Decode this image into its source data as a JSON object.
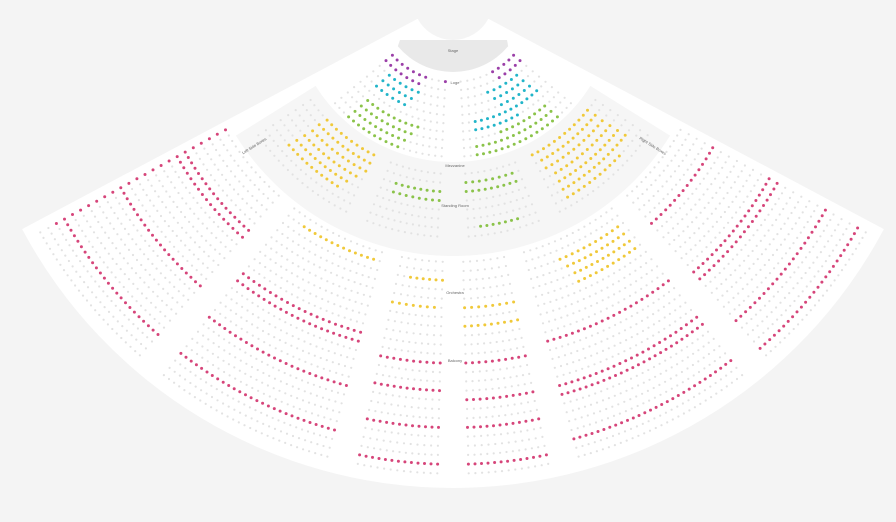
{
  "categories": {
    "purple": "#9b3fa8",
    "cyan": "#22b5c9",
    "green": "#8bc34a",
    "yellow": "#f0c93a",
    "pink": "#d6457a",
    "unavailable": "#e2e2e2"
  },
  "labels": {
    "stage": "Stage",
    "upper": "Loge",
    "mezzanine": "Mezzanine",
    "standing": "Standing Room",
    "orchestra": "Orchestra",
    "rear": "Balcony",
    "left_box": "Left Side Boxes",
    "right_box": "Right Side Boxes"
  },
  "highlights": [
    {
      "wedge": "UL",
      "rows": [
        0,
        1
      ],
      "seats": [
        0,
        6
      ],
      "category": "purple"
    },
    {
      "wedge": "UL",
      "rows": [
        0,
        0
      ],
      "seats": [
        9,
        12
      ],
      "category": "purple"
    },
    {
      "wedge": "UR",
      "rows": [
        0,
        1
      ],
      "seats": [
        -5,
        -1
      ],
      "category": "purple"
    },
    {
      "wedge": "UL",
      "rows": [
        2,
        4
      ],
      "seats": [
        2,
        7
      ],
      "category": "cyan"
    },
    {
      "wedge": "UR",
      "rows": [
        2,
        5
      ],
      "seats": [
        -8,
        -3
      ],
      "category": "cyan"
    },
    {
      "wedge": "UR",
      "rows": [
        5,
        6
      ],
      "seats": [
        2,
        9
      ],
      "category": "cyan"
    },
    {
      "wedge": "UL",
      "rows": [
        6,
        9
      ],
      "seats": [
        3,
        12
      ],
      "category": "green"
    },
    {
      "wedge": "UR",
      "rows": [
        8,
        9
      ],
      "seats": [
        2,
        14
      ],
      "category": "green"
    },
    {
      "wedge": "UR",
      "rows": [
        7,
        9
      ],
      "seats": [
        -12,
        -4
      ],
      "category": "green"
    },
    {
      "wedge": "MCL",
      "rows": [
        2,
        3
      ],
      "seats": [
        2,
        9
      ],
      "category": "green"
    },
    {
      "wedge": "MCR",
      "rows": [
        1,
        2
      ],
      "seats": [
        -10,
        -2
      ],
      "category": "green"
    },
    {
      "wedge": "MCR",
      "rows": [
        6,
        6
      ],
      "seats": [
        2,
        8
      ],
      "category": "green"
    },
    {
      "wedge": "ML",
      "rows": [
        0,
        5
      ],
      "seats": [
        4,
        14
      ],
      "category": "yellow"
    },
    {
      "wedge": "ML",
      "rows": [
        1,
        3
      ],
      "seats": [
        -10,
        -2
      ],
      "category": "yellow"
    },
    {
      "wedge": "MR",
      "rows": [
        0,
        5
      ],
      "seats": [
        -14,
        -3
      ],
      "category": "yellow"
    },
    {
      "wedge": "MR",
      "rows": [
        3,
        6
      ],
      "seats": [
        2,
        12
      ],
      "category": "yellow"
    },
    {
      "wedge": "LM",
      "rows": [
        1,
        1
      ],
      "seats": [
        3,
        15
      ],
      "category": "yellow"
    },
    {
      "wedge": "LC",
      "rows": [
        5,
        5
      ],
      "seats": [
        0,
        6
      ],
      "category": "yellow"
    },
    {
      "wedge": "LC",
      "rows": [
        2,
        2
      ],
      "seats": [
        -6,
        -1
      ],
      "category": "yellow"
    },
    {
      "wedge": "RC",
      "rows": [
        5,
        5
      ],
      "seats": [
        0,
        14
      ],
      "category": "yellow"
    },
    {
      "wedge": "RC",
      "rows": [
        7,
        7
      ],
      "seats": [
        0,
        12
      ],
      "category": "yellow"
    },
    {
      "wedge": "RM",
      "rows": [
        2,
        5
      ],
      "seats": [
        -12,
        -2
      ],
      "category": "yellow"
    },
    {
      "wedge": "LL",
      "rows": [
        0,
        21
      ],
      "seats": [
        0,
        0
      ],
      "category": "pink",
      "every": 1
    },
    {
      "wedge": "LL",
      "rows": [
        5,
        6
      ],
      "seats": [
        0,
        40
      ],
      "category": "pink"
    },
    {
      "wedge": "LL",
      "rows": [
        13,
        13
      ],
      "seats": [
        0,
        40
      ],
      "category": "pink"
    },
    {
      "wedge": "LL",
      "rows": [
        20,
        20
      ],
      "seats": [
        0,
        40
      ],
      "category": "pink"
    },
    {
      "wedge": "RR",
      "rows": [
        4,
        4
      ],
      "seats": [
        0,
        40
      ],
      "category": "pink"
    },
    {
      "wedge": "RR",
      "rows": [
        11,
        12
      ],
      "seats": [
        0,
        40
      ],
      "category": "pink"
    },
    {
      "wedge": "RR",
      "rows": [
        18,
        18
      ],
      "seats": [
        0,
        40
      ],
      "category": "pink"
    },
    {
      "wedge": "RR",
      "rows": [
        22,
        22
      ],
      "seats": [
        0,
        40
      ],
      "category": "pink"
    },
    {
      "wedge": "LM",
      "rows": [
        9,
        10
      ],
      "seats": [
        0,
        30
      ],
      "category": "pink"
    },
    {
      "wedge": "LM",
      "rows": [
        15,
        15
      ],
      "seats": [
        0,
        30
      ],
      "category": "pink"
    },
    {
      "wedge": "LM",
      "rows": [
        20,
        20
      ],
      "seats": [
        0,
        30
      ],
      "category": "pink"
    },
    {
      "wedge": "RM",
      "rows": [
        10,
        10
      ],
      "seats": [
        0,
        30
      ],
      "category": "pink"
    },
    {
      "wedge": "RM",
      "rows": [
        15,
        16
      ],
      "seats": [
        0,
        30
      ],
      "category": "pink"
    },
    {
      "wedge": "RM",
      "rows": [
        21,
        21
      ],
      "seats": [
        0,
        30
      ],
      "category": "pink"
    },
    {
      "wedge": "LC",
      "rows": [
        11,
        11
      ],
      "seats": [
        0,
        20
      ],
      "category": "pink"
    },
    {
      "wedge": "LC",
      "rows": [
        14,
        14
      ],
      "seats": [
        0,
        20
      ],
      "category": "pink"
    },
    {
      "wedge": "LC",
      "rows": [
        18,
        18
      ],
      "seats": [
        0,
        20
      ],
      "category": "pink"
    },
    {
      "wedge": "LC",
      "rows": [
        22,
        22
      ],
      "seats": [
        0,
        20
      ],
      "category": "pink"
    },
    {
      "wedge": "RC",
      "rows": [
        11,
        11
      ],
      "seats": [
        0,
        20
      ],
      "category": "pink"
    },
    {
      "wedge": "RC",
      "rows": [
        15,
        15
      ],
      "seats": [
        0,
        20
      ],
      "category": "pink"
    },
    {
      "wedge": "RC",
      "rows": [
        18,
        18
      ],
      "seats": [
        0,
        20
      ],
      "category": "pink"
    },
    {
      "wedge": "RC",
      "rows": [
        22,
        22
      ],
      "seats": [
        0,
        20
      ],
      "category": "pink"
    }
  ]
}
